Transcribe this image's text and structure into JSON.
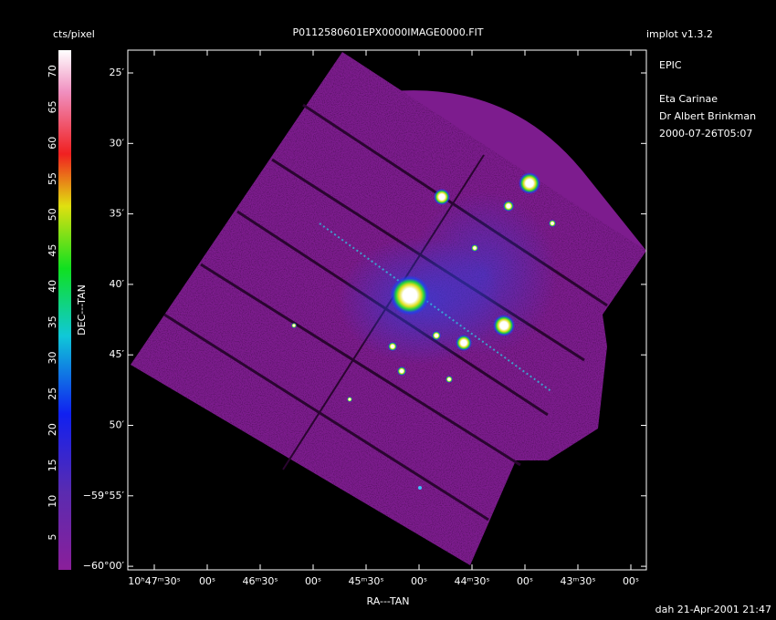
{
  "header": {
    "colorbar_label": "cts/pixel",
    "filename": "P0112580601EPX0000IMAGE0000.FIT",
    "program": "implot v1.3.2"
  },
  "info": [
    "EPIC",
    "Eta Carinae",
    "Dr Albert Brinkman",
    "2000-07-26T05:07"
  ],
  "colorbar": {
    "ticks": [
      5,
      10,
      15,
      20,
      25,
      30,
      35,
      40,
      45,
      50,
      55,
      60,
      65,
      70
    ]
  },
  "axes": {
    "y_label": "DEC---TAN",
    "x_label": "RA---TAN",
    "y_ticks": [
      "25′",
      "30′",
      "35′",
      "40′",
      "45′",
      "50′",
      "−59°55′",
      "−60°00′"
    ],
    "x_ticks": [
      "10ʰ47ᵐ30ˢ",
      "00ˢ",
      "46ᵐ30ˢ",
      "00ˢ",
      "45ᵐ30ˢ",
      "00ˢ",
      "44ᵐ30ˢ",
      "00ˢ",
      "43ᵐ30ˢ",
      "00ˢ"
    ]
  },
  "footer": "dah 21-Apr-2001 21:47"
}
